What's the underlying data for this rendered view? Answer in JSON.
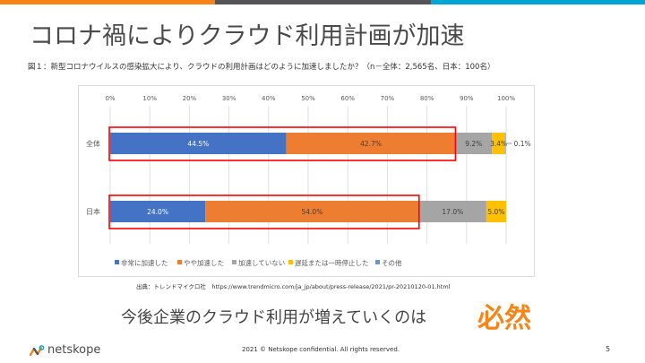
{
  "header": {
    "title": "コロナ禍によりクラウド利用計画が加速",
    "accent_colors": [
      "#f68417",
      "#545459",
      "#00a6d3"
    ]
  },
  "figure_caption": "図１：新型コロナウイルスの感染拡大により、クラウドの利用計画はどのように加速しましたか？（n－全体：2,565名、日本：100名）",
  "chart_data": {
    "type": "bar",
    "orientation": "horizontal",
    "stacked": "percent",
    "categories": [
      "全体",
      "日本"
    ],
    "xlim": [
      0,
      100
    ],
    "x_ticks": [
      "0%",
      "10%",
      "20%",
      "30%",
      "40%",
      "50%",
      "60%",
      "70%",
      "80%",
      "90%",
      "100%"
    ],
    "grid": true,
    "legend_position": "bottom",
    "series": [
      {
        "name": "非常に加速した",
        "color": "#4472c4",
        "values": [
          44.5,
          24.0
        ],
        "labels": [
          "44.5%",
          "24.0%"
        ],
        "label_color": "#ffffff"
      },
      {
        "name": "やや加速した",
        "color": "#ed7d31",
        "values": [
          42.7,
          54.0
        ],
        "labels": [
          "42.7%",
          "54.0%"
        ],
        "label_color": "#404040"
      },
      {
        "name": "加速していない",
        "color": "#a5a5a5",
        "values": [
          9.2,
          17.0
        ],
        "labels": [
          "9.2%",
          "17.0%"
        ],
        "label_color": "#404040"
      },
      {
        "name": "遅延または一時停止した",
        "color": "#ffc000",
        "values": [
          3.4,
          5.0
        ],
        "labels": [
          "3.4%",
          "5.0%"
        ],
        "label_color": "#404040"
      },
      {
        "name": "その他",
        "color": "#5b9bd5",
        "values": [
          0.1,
          0.0
        ],
        "labels": [
          "0.1%",
          ""
        ],
        "label_color": "#404040"
      }
    ],
    "highlights": [
      {
        "category": "全体",
        "from": 0,
        "to": 87.2,
        "color": "#ff0000"
      },
      {
        "category": "日本",
        "from": 0,
        "to": 78.0,
        "color": "#ff0000"
      }
    ]
  },
  "source": "出典：トレンドマイクロ社　https://www.trendmicro.com/ja_jp/about/press-release/2021/pr-20210120-01.html",
  "conclusion": {
    "text": "今後企業のクラウド利用が増えていくのは",
    "emphasis": "必然"
  },
  "footer": {
    "logo_text": "netskope",
    "copyright": "2021 © Netskope confidential. All rights reserved.",
    "page_number": "5"
  }
}
